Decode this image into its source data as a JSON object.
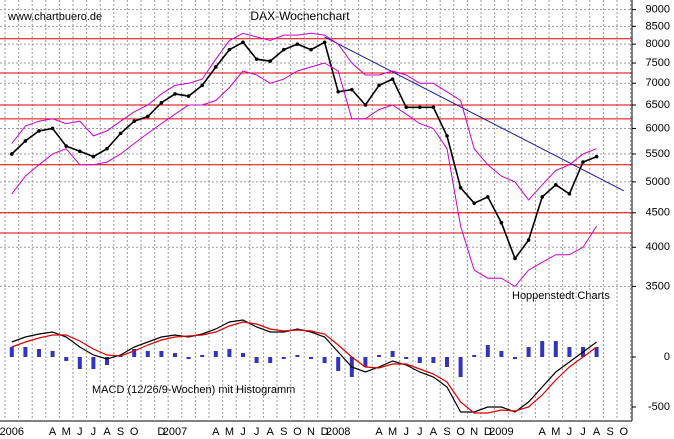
{
  "chart_data": {
    "type": "stock",
    "source": "www.chartbuero.de",
    "title": "DAX-Wochenchart",
    "credit": "Hoppenstedt Charts",
    "categories": [
      "2006",
      null,
      null,
      "A",
      "M",
      "J",
      "J",
      "A",
      "S",
      "O",
      null,
      "D",
      "2007",
      null,
      null,
      "A",
      "M",
      "J",
      "J",
      "A",
      "S",
      "O",
      "N",
      "D",
      "2008",
      null,
      null,
      "A",
      "M",
      "J",
      "J",
      "A",
      "S",
      "O",
      "N",
      "D",
      "2009",
      null,
      null,
      "A",
      "M",
      "J",
      "J",
      "A",
      "S",
      "O"
    ],
    "log_scale": true,
    "ylim": [
      3100,
      9300
    ],
    "yticks": [
      3500,
      4000,
      4500,
      5000,
      5500,
      6000,
      6500,
      7000,
      7500,
      8000,
      8500,
      9000
    ],
    "grid": true,
    "series": [
      {
        "color": "#000000",
        "values": [
          5500,
          5750,
          5950,
          6000,
          5650,
          5550,
          5450,
          5600,
          5900,
          6150,
          6250,
          6550,
          6750,
          6700,
          6950,
          7400,
          7850,
          8050,
          7600,
          7550,
          7850,
          8000,
          7850,
          8050,
          6800,
          6850,
          6500,
          6950,
          7100,
          6450,
          6450,
          6450,
          5850,
          4900,
          4650,
          4750,
          4350,
          3850,
          4100,
          4750,
          4950,
          4800,
          5350,
          5450,
          null,
          null
        ]
      },
      {
        "color": "#cc00cc",
        "values": [
          5700,
          6050,
          6150,
          6200,
          6100,
          6150,
          5850,
          5950,
          6150,
          6350,
          6500,
          6750,
          6950,
          7000,
          7100,
          7600,
          8100,
          8300,
          8200,
          8100,
          8250,
          8250,
          8300,
          8250,
          8000,
          7500,
          7200,
          7200,
          7300,
          7200,
          7000,
          7000,
          6800,
          6600,
          5600,
          5300,
          5100,
          5000,
          4700,
          4950,
          5200,
          5300,
          5500,
          5600,
          null,
          null
        ]
      },
      {
        "color": "#cc00cc",
        "values": [
          4800,
          5100,
          5300,
          5500,
          5600,
          5300,
          5300,
          5350,
          5500,
          5700,
          5900,
          6100,
          6300,
          6500,
          6500,
          6600,
          6900,
          7300,
          7200,
          7000,
          7100,
          7300,
          7400,
          7500,
          7300,
          6200,
          6200,
          6400,
          6500,
          6300,
          6100,
          6000,
          5600,
          4300,
          3700,
          3600,
          3600,
          3500,
          3700,
          3800,
          3900,
          3900,
          4000,
          4300,
          null,
          null
        ]
      }
    ],
    "support_lines": {
      "color": "#dd0000",
      "values": [
        8150,
        7250,
        6500,
        6200,
        5300,
        4500,
        4200
      ]
    },
    "trendline": {
      "color": "#1a1aa0",
      "from": 8200,
      "to": 4850
    },
    "macd": {
      "label": "MACD (12/26/9-Wochen) mit Histogramm",
      "ylim": [
        -700,
        400
      ],
      "yticks": [
        0,
        -500
      ],
      "series": [
        {
          "color": "#000000",
          "values": [
            150,
            200,
            230,
            250,
            200,
            100,
            20,
            -20,
            20,
            100,
            150,
            200,
            220,
            200,
            230,
            280,
            350,
            370,
            300,
            250,
            250,
            280,
            250,
            200,
            50,
            -100,
            -150,
            -100,
            -40,
            -80,
            -150,
            -200,
            -300,
            -550,
            -550,
            -500,
            -500,
            -550,
            -450,
            -300,
            -150,
            -50,
            50,
            150,
            null,
            null
          ]
        },
        {
          "color": "#dd0000",
          "values": [
            100,
            150,
            190,
            220,
            220,
            160,
            80,
            20,
            10,
            60,
            120,
            170,
            200,
            210,
            220,
            250,
            310,
            350,
            330,
            280,
            260,
            270,
            260,
            230,
            120,
            0,
            -100,
            -110,
            -70,
            -70,
            -120,
            -170,
            -250,
            -450,
            -560,
            -560,
            -530,
            -540,
            -500,
            -380,
            -230,
            -100,
            0,
            100,
            null,
            null
          ]
        }
      ],
      "histogram": {
        "color": "#3333bb",
        "values": [
          100,
          100,
          80,
          60,
          -40,
          -120,
          -120,
          -80,
          20,
          80,
          60,
          60,
          40,
          -20,
          20,
          60,
          80,
          40,
          -60,
          -60,
          -20,
          20,
          -20,
          -60,
          -140,
          -200,
          -100,
          20,
          60,
          -20,
          -60,
          -60,
          -100,
          -200,
          20,
          120,
          60,
          -20,
          100,
          160,
          160,
          100,
          100,
          100,
          null,
          null
        ]
      }
    }
  }
}
